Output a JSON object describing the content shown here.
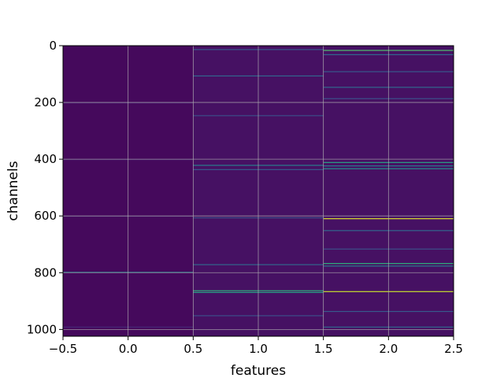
{
  "chart_data": {
    "type": "heatmap",
    "title": "",
    "xlabel": "features",
    "ylabel": "channels",
    "xlim": [
      -0.5,
      2.5
    ],
    "ylim": [
      1024,
      0
    ],
    "y_inverted": true,
    "x_ticks": [
      -0.5,
      0.0,
      0.5,
      1.0,
      1.5,
      2.0,
      2.5
    ],
    "x_tick_labels": [
      "−0.5",
      "0.0",
      "0.5",
      "1.0",
      "1.5",
      "2.0",
      "2.5"
    ],
    "y_ticks": [
      0,
      200,
      400,
      600,
      800,
      1000
    ],
    "y_tick_labels": [
      "0",
      "200",
      "400",
      "600",
      "800",
      "1000"
    ],
    "grid": true,
    "colormap": "viridis",
    "columns": [
      {
        "feature": 0,
        "base_value": 0.03,
        "highlights": [
          {
            "channel": 200,
            "value": 0.12
          },
          {
            "channel": 400,
            "value": 0.1
          },
          {
            "channel": 600,
            "value": 0.1
          },
          {
            "channel": 797,
            "value": 0.45
          },
          {
            "channel": 990,
            "value": 0.15
          }
        ]
      },
      {
        "feature": 1,
        "base_value": 0.06,
        "highlights": [
          {
            "channel": 12,
            "value": 0.35
          },
          {
            "channel": 105,
            "value": 0.4
          },
          {
            "channel": 245,
            "value": 0.3
          },
          {
            "channel": 420,
            "value": 0.45
          },
          {
            "channel": 435,
            "value": 0.35
          },
          {
            "channel": 605,
            "value": 0.3
          },
          {
            "channel": 770,
            "value": 0.4
          },
          {
            "channel": 862,
            "value": 0.6
          },
          {
            "channel": 868,
            "value": 0.55
          },
          {
            "channel": 950,
            "value": 0.3
          }
        ]
      },
      {
        "feature": 2,
        "base_value": 0.06,
        "highlights": [
          {
            "channel": 15,
            "value": 0.7
          },
          {
            "channel": 30,
            "value": 0.4
          },
          {
            "channel": 90,
            "value": 0.35
          },
          {
            "channel": 145,
            "value": 0.4
          },
          {
            "channel": 185,
            "value": 0.3
          },
          {
            "channel": 410,
            "value": 0.55
          },
          {
            "channel": 422,
            "value": 0.45
          },
          {
            "channel": 432,
            "value": 0.5
          },
          {
            "channel": 608,
            "value": 0.95
          },
          {
            "channel": 650,
            "value": 0.4
          },
          {
            "channel": 715,
            "value": 0.3
          },
          {
            "channel": 766,
            "value": 0.6
          },
          {
            "channel": 775,
            "value": 0.45
          },
          {
            "channel": 865,
            "value": 0.92
          },
          {
            "channel": 935,
            "value": 0.35
          },
          {
            "channel": 990,
            "value": 0.4
          }
        ]
      }
    ]
  }
}
